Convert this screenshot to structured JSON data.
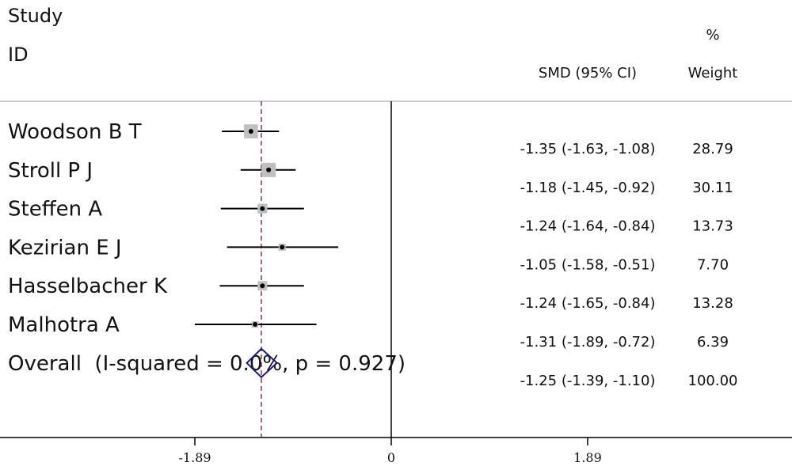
{
  "chart_data": {
    "type": "forest",
    "title": "",
    "header": {
      "study_line1": "Study",
      "study_line2": "ID",
      "smd_label": "SMD (95% CI)",
      "weight_line1": "%",
      "weight_line2": "Weight"
    },
    "studies": [
      {
        "name": "Woodson B T",
        "smd": -1.35,
        "lower": -1.63,
        "upper": -1.08,
        "weight": 28.79,
        "ci_text": "-1.35 (-1.63, -1.08)",
        "weight_text": "28.79"
      },
      {
        "name": "Stroll P J",
        "smd": -1.18,
        "lower": -1.45,
        "upper": -0.92,
        "weight": 30.11,
        "ci_text": "-1.18 (-1.45, -0.92)",
        "weight_text": "30.11"
      },
      {
        "name": "Steffen A",
        "smd": -1.24,
        "lower": -1.64,
        "upper": -0.84,
        "weight": 13.73,
        "ci_text": "-1.24 (-1.64, -0.84)",
        "weight_text": "13.73"
      },
      {
        "name": "Kezirian E J",
        "smd": -1.05,
        "lower": -1.58,
        "upper": -0.51,
        "weight": 7.7,
        "ci_text": "-1.05 (-1.58, -0.51)",
        "weight_text": "7.70"
      },
      {
        "name": "Hasselbacher K",
        "smd": -1.24,
        "lower": -1.65,
        "upper": -0.84,
        "weight": 13.28,
        "ci_text": "-1.24 (-1.65, -0.84)",
        "weight_text": "13.28"
      },
      {
        "name": "Malhotra A",
        "smd": -1.31,
        "lower": -1.89,
        "upper": -0.72,
        "weight": 6.39,
        "ci_text": "-1.31 (-1.89, -0.72)",
        "weight_text": "6.39"
      }
    ],
    "overall": {
      "label": "Overall  (I-squared = 0.0%, p = 0.927)",
      "smd": -1.25,
      "lower": -1.39,
      "upper": -1.1,
      "weight": 100.0,
      "ci_text": "-1.25 (-1.39, -1.10)",
      "weight_text": "100.00"
    },
    "x_ticks": [
      {
        "value": -1.89,
        "label": "-1.89"
      },
      {
        "value": 0,
        "label": "0"
      },
      {
        "value": 1.89,
        "label": "1.89"
      }
    ],
    "xlim": [
      -3.66,
      3.66
    ],
    "colors": {
      "box": "#c0c0c0",
      "ci_line": "#000000",
      "dashed_line": "#8b3a4a",
      "diamond": "#1a1a6e",
      "axis": "#000000"
    }
  }
}
